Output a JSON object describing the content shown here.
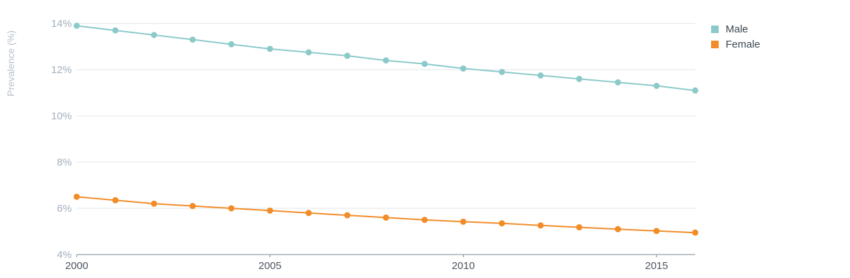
{
  "chart_data": {
    "type": "line",
    "title": "",
    "xlabel": "",
    "ylabel": "Prevalence (%)",
    "xlim": [
      2000,
      2016
    ],
    "ylim": [
      4,
      14
    ],
    "y_ticks": [
      4,
      6,
      8,
      10,
      12,
      14
    ],
    "y_tick_labels": [
      "4%",
      "6%",
      "8%",
      "10%",
      "12%",
      "14%"
    ],
    "x_ticks": [
      2000,
      2005,
      2010,
      2015
    ],
    "x_tick_labels": [
      "2000",
      "2005",
      "2010",
      "2015"
    ],
    "grid": true,
    "legend_position": "top-right",
    "x": [
      2000,
      2001,
      2002,
      2003,
      2004,
      2005,
      2006,
      2007,
      2008,
      2009,
      2010,
      2011,
      2012,
      2013,
      2014,
      2015,
      2016
    ],
    "series": [
      {
        "name": "Male",
        "color": "#8ccaca",
        "values": [
          13.9,
          13.7,
          13.5,
          13.3,
          13.1,
          12.9,
          12.75,
          12.6,
          12.4,
          12.25,
          12.05,
          11.9,
          11.75,
          11.6,
          11.45,
          11.3,
          11.1
        ]
      },
      {
        "name": "Female",
        "color": "#f28c28",
        "values": [
          6.5,
          6.35,
          6.2,
          6.1,
          6.0,
          5.9,
          5.8,
          5.7,
          5.6,
          5.5,
          5.42,
          5.35,
          5.26,
          5.18,
          5.1,
          5.02,
          4.95
        ]
      }
    ]
  }
}
